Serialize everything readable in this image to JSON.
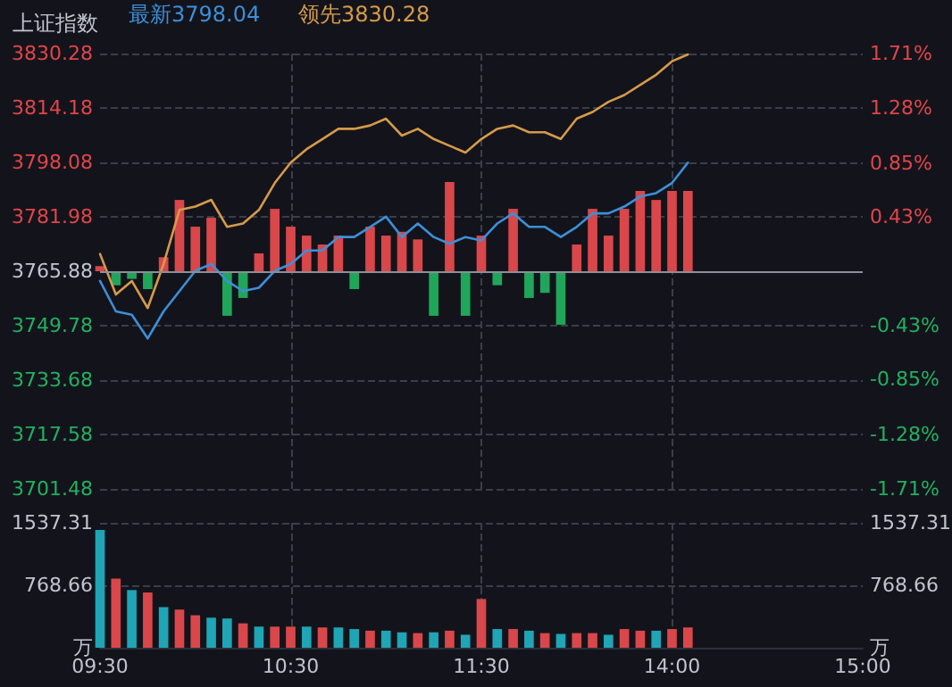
{
  "chart_data": [
    {
      "type": "line",
      "title": "上证指数",
      "categories": [
        null,
        null,
        null,
        null,
        null,
        null,
        null,
        null,
        null,
        null,
        null,
        null,
        null,
        null,
        null,
        null,
        null,
        null,
        null,
        null,
        null,
        null,
        null,
        null,
        null,
        null,
        null,
        null,
        null,
        null,
        null,
        null,
        null,
        null,
        null,
        null,
        null,
        null,
        null,
        null,
        null,
        null,
        null,
        null,
        null,
        null,
        null,
        null,
        null
      ],
      "series": [
        {
          "name": "最新3798.04",
          "color": "#3d8fd8",
          "values": [
            3763,
            3754,
            3753,
            3746,
            3754,
            3760,
            3766,
            3768,
            3763,
            3760,
            3761,
            3766,
            3768,
            3772,
            3772,
            3776,
            3776,
            3779,
            3782,
            3776,
            3780,
            3776,
            3774,
            3776,
            3775,
            3780,
            3783,
            3779,
            3779,
            3776,
            3779,
            3783,
            3783,
            3785,
            3788,
            3789,
            3792,
            3798,
            null,
            null,
            null,
            null,
            null,
            null,
            null,
            null,
            null,
            null,
            null
          ]
        },
        {
          "name": "领先3830.28",
          "color": "#d69a4a",
          "values": [
            3771,
            3759,
            3763,
            3755,
            3768,
            3784,
            3785,
            3787,
            3779,
            3780,
            3784,
            3792,
            3798,
            3802,
            3805,
            3808,
            3808,
            3809,
            3811,
            3806,
            3808,
            3805,
            3803,
            3801,
            3805,
            3808,
            3809,
            3807,
            3807,
            3805,
            3811,
            3813,
            3816,
            3818,
            3821,
            3824,
            3828,
            3830,
            null,
            null,
            null,
            null,
            null,
            null,
            null,
            null,
            null,
            null,
            null
          ]
        },
        {
          "type": "bar",
          "axis": "y2",
          "colors": [
            "#d9474a",
            "#20a65a",
            "#20a65a",
            "#20a65a",
            "#d9474a",
            "#d9474a",
            "#d9474a",
            "#d9474a",
            "#20a65a",
            "#20a65a",
            "#d9474a",
            "#d9474a",
            "#d9474a",
            "#d9474a",
            "#d9474a",
            "#d9474a",
            "#20a65a",
            "#d9474a",
            "#d9474a",
            "#d9474a",
            "#d9474a",
            "#20a65a",
            "#d9474a",
            "#20a65a",
            "#d9474a",
            "#20a65a",
            "#d9474a",
            "#20a65a",
            "#20a65a",
            "#20a65a",
            "#d9474a",
            "#d9474a",
            "#d9474a",
            "#d9474a",
            "#d9474a",
            "#d9474a",
            "#d9474a",
            "#d9474a",
            null,
            null,
            null,
            null,
            null,
            null,
            null,
            null,
            null,
            null,
            null
          ],
          "values": [
            0.04,
            -0.11,
            -0.06,
            -0.14,
            0.11,
            0.56,
            0.35,
            0.42,
            -0.35,
            -0.21,
            0.14,
            0.49,
            0.35,
            0.28,
            0.21,
            0.28,
            -0.14,
            0.35,
            0.28,
            0.31,
            0.25,
            -0.35,
            0.7,
            -0.35,
            0.28,
            -0.11,
            0.49,
            -0.21,
            -0.17,
            -0.42,
            0.21,
            0.49,
            0.28,
            0.49,
            0.63,
            0.56,
            0.63,
            0.63,
            null,
            null,
            null,
            null,
            null,
            null,
            null,
            null,
            null,
            null,
            null
          ]
        }
      ],
      "ylim": [
        3701.48,
        3830.28
      ],
      "yticks": [
        3701.48,
        3717.58,
        3733.68,
        3749.78,
        3765.88,
        3781.98,
        3798.08,
        3814.18,
        3830.28
      ],
      "y2lim": [
        -1.71,
        1.71
      ],
      "y2ticks": [
        {
          "value": -1.71,
          "label": "-1.71%"
        },
        {
          "value": -1.28,
          "label": "-1.28%"
        },
        {
          "value": -0.85,
          "label": "-0.85%"
        },
        {
          "value": -0.43,
          "label": "-0.43%"
        },
        {
          "value": 0.43,
          "label": "0.43%"
        },
        {
          "value": 0.85,
          "label": "0.85%"
        },
        {
          "value": 1.28,
          "label": "1.28%"
        },
        {
          "value": 1.71,
          "label": "1.71%"
        }
      ],
      "ref_lines": [
        {
          "axis": "y",
          "value": 3765.88,
          "color": "#8a8f99"
        }
      ],
      "grid": true,
      "tick_labels": "y"
    },
    {
      "type": "bar",
      "categories": [
        "09:30",
        null,
        null,
        null,
        null,
        null,
        null,
        null,
        null,
        null,
        null,
        null,
        "10:30",
        null,
        null,
        null,
        null,
        null,
        null,
        null,
        null,
        null,
        null,
        null,
        "11:30",
        null,
        null,
        null,
        null,
        null,
        null,
        null,
        null,
        null,
        null,
        null,
        "14:00",
        null,
        null,
        null,
        null,
        null,
        null,
        null,
        null,
        null,
        null,
        null,
        "15:00"
      ],
      "values": [
        1450,
        850,
        710,
        680,
        500,
        470,
        400,
        370,
        360,
        300,
        260,
        260,
        260,
        260,
        250,
        250,
        230,
        210,
        210,
        190,
        180,
        190,
        210,
        160,
        600,
        230,
        230,
        210,
        180,
        170,
        180,
        180,
        160,
        230,
        210,
        210,
        230,
        250,
        null,
        null,
        null,
        null,
        null,
        null,
        null,
        null,
        null,
        null,
        null
      ],
      "colors": [
        "#1fa5b5",
        "#d9474a",
        "#1fa5b5",
        "#d9474a",
        "#1fa5b5",
        "#d9474a",
        "#d9474a",
        "#1fa5b5",
        "#1fa5b5",
        "#d9474a",
        "#1fa5b5",
        "#d9474a",
        "#d9474a",
        "#1fa5b5",
        "#d9474a",
        "#1fa5b5",
        "#1fa5b5",
        "#d9474a",
        "#1fa5b5",
        "#1fa5b5",
        "#d9474a",
        "#1fa5b5",
        "#d9474a",
        "#1fa5b5",
        "#d9474a",
        "#1fa5b5",
        "#d9474a",
        "#1fa5b5",
        "#d9474a",
        "#1fa5b5",
        "#d9474a",
        "#d9474a",
        "#1fa5b5",
        "#d9474a",
        "#d9474a",
        "#1fa5b5",
        "#d9474a",
        "#d9474a",
        null,
        null,
        null,
        null,
        null,
        null,
        null,
        null,
        null,
        null,
        null
      ],
      "ylim": [
        0,
        1537.31
      ],
      "yticks": [
        {
          "value": 0,
          "label": "万"
        },
        768.66,
        1537.31
      ],
      "y2lim": [
        0,
        1537.31
      ],
      "y2ticks": [
        {
          "value": 0,
          "label": "万"
        },
        768.66,
        1537.31
      ],
      "grid": true
    }
  ]
}
